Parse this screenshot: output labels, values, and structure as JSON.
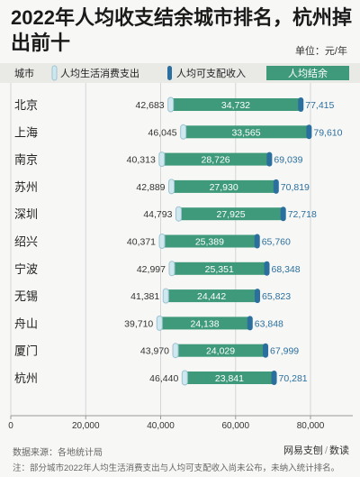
{
  "header": {
    "title": "2022年人均收支结余城市排名，杭州掉出前十",
    "unit": "单位：元/年"
  },
  "legend": {
    "city_header": "城市",
    "items": [
      "人均生活消费支出",
      "人均可支配收入",
      "人均结余"
    ]
  },
  "footer": {
    "source": "数据来源：各地统计局",
    "note": "注：部分城市2022年人均生活消费支出与人均可支配收入尚未公布，未纳入统计排名。",
    "brand_left": "网易支刨",
    "brand_sep": "/",
    "brand_right": "数读"
  },
  "colors": {
    "spending": "#cfe7ef",
    "spending_border": "#9cc4d2",
    "income": "#2b6f9e",
    "surplus": "#3e9a7b",
    "income_text": "#2b6f9e"
  },
  "chart_data": {
    "type": "bar",
    "title": "2022年人均收支结余城市排名，杭州掉出前十",
    "unit": "单位：元/年",
    "categories": [
      "北京",
      "上海",
      "南京",
      "苏州",
      "深圳",
      "绍兴",
      "宁波",
      "无锡",
      "舟山",
      "厦门",
      "杭州"
    ],
    "series": [
      {
        "name": "人均生活消费支出",
        "values": [
          42683,
          46045,
          40313,
          42889,
          44793,
          40371,
          42997,
          41381,
          39710,
          43970,
          46440
        ]
      },
      {
        "name": "人均结余",
        "values": [
          34732,
          33565,
          28726,
          27930,
          27925,
          25389,
          25351,
          24442,
          24138,
          24029,
          23841
        ]
      },
      {
        "name": "人均可支配收入",
        "values": [
          77415,
          79610,
          69039,
          70819,
          72718,
          65760,
          68348,
          65823,
          63848,
          67999,
          70281
        ]
      }
    ],
    "xlim": [
      0,
      80000
    ],
    "xticks": [
      0,
      20000,
      40000,
      60000,
      80000
    ],
    "xtick_labels": [
      "0",
      "20,000",
      "40,000",
      "60,000",
      "80,000"
    ],
    "grid": true
  }
}
